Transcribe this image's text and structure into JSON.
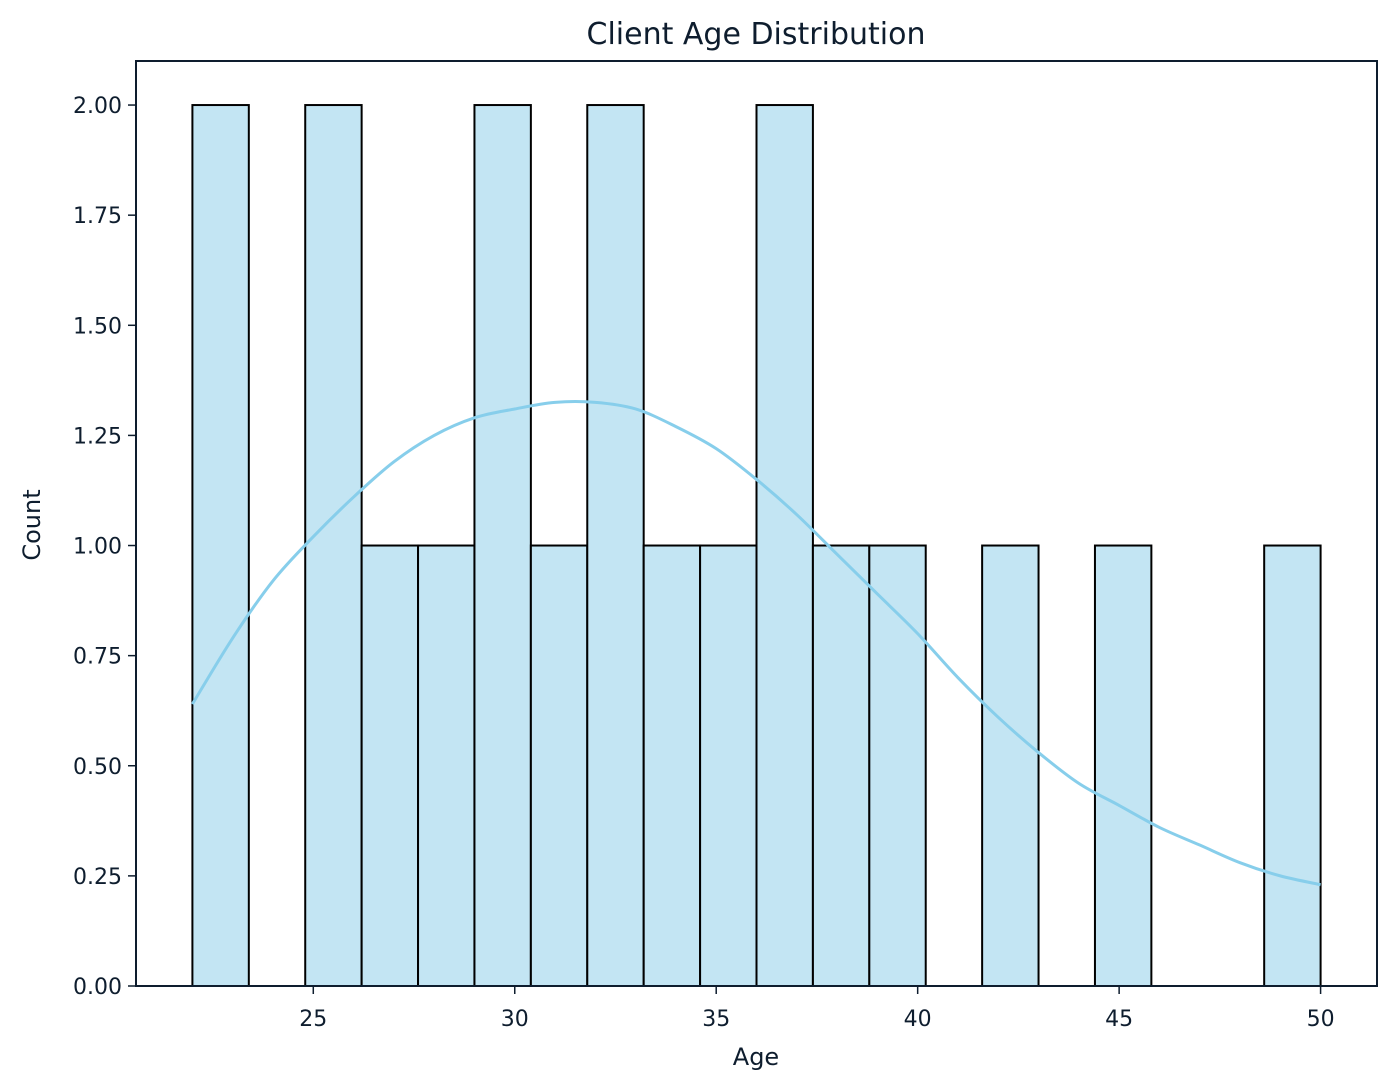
{
  "chart_data": {
    "type": "bar",
    "title": "Client Age Distribution",
    "xlabel": "Age",
    "ylabel": "Count",
    "xlim": [
      20.6,
      51.4
    ],
    "ylim": [
      0,
      2.1
    ],
    "x_ticks": [
      25,
      30,
      35,
      40,
      45,
      50
    ],
    "x_tick_labels": [
      "25",
      "30",
      "35",
      "40",
      "45",
      "50"
    ],
    "y_ticks": [
      0,
      0.25,
      0.5,
      0.75,
      1.0,
      1.25,
      1.5,
      1.75,
      2.0
    ],
    "y_tick_labels": [
      "0.00",
      "0.25",
      "0.50",
      "0.75",
      "1.00",
      "1.25",
      "1.50",
      "1.75",
      "2.00"
    ],
    "bin_start": 22,
    "bin_width": 1.4,
    "bins": [
      {
        "x0": 22.0,
        "x1": 23.4,
        "count": 2
      },
      {
        "x0": 23.4,
        "x1": 24.8,
        "count": 0
      },
      {
        "x0": 24.8,
        "x1": 26.2,
        "count": 2
      },
      {
        "x0": 26.2,
        "x1": 27.6,
        "count": 1
      },
      {
        "x0": 27.6,
        "x1": 29.0,
        "count": 1
      },
      {
        "x0": 29.0,
        "x1": 30.4,
        "count": 2
      },
      {
        "x0": 30.4,
        "x1": 31.8,
        "count": 1
      },
      {
        "x0": 31.8,
        "x1": 33.2,
        "count": 2
      },
      {
        "x0": 33.2,
        "x1": 34.6,
        "count": 1
      },
      {
        "x0": 34.6,
        "x1": 36.0,
        "count": 1
      },
      {
        "x0": 36.0,
        "x1": 37.4,
        "count": 2
      },
      {
        "x0": 37.4,
        "x1": 38.8,
        "count": 1
      },
      {
        "x0": 38.8,
        "x1": 40.2,
        "count": 1
      },
      {
        "x0": 40.2,
        "x1": 41.6,
        "count": 0
      },
      {
        "x0": 41.6,
        "x1": 43.0,
        "count": 1
      },
      {
        "x0": 43.0,
        "x1": 44.4,
        "count": 0
      },
      {
        "x0": 44.4,
        "x1": 45.8,
        "count": 1
      },
      {
        "x0": 45.8,
        "x1": 47.2,
        "count": 0
      },
      {
        "x0": 47.2,
        "x1": 48.6,
        "count": 0
      },
      {
        "x0": 48.6,
        "x1": 50.0,
        "count": 1
      }
    ],
    "kde": {
      "x": [
        22,
        23,
        24,
        25,
        26,
        27,
        28,
        29,
        30,
        31,
        32,
        33,
        34,
        35,
        36,
        37,
        38,
        39,
        40,
        41,
        42,
        43,
        44,
        45,
        46,
        47,
        48,
        49,
        50
      ],
      "y": [
        0.64,
        0.79,
        0.92,
        1.02,
        1.11,
        1.19,
        1.25,
        1.29,
        1.31,
        1.325,
        1.325,
        1.31,
        1.27,
        1.22,
        1.15,
        1.07,
        0.98,
        0.89,
        0.8,
        0.7,
        0.61,
        0.53,
        0.46,
        0.41,
        0.36,
        0.32,
        0.28,
        0.25,
        0.23
      ]
    },
    "colors": {
      "bar_fill": "#c3e5f3",
      "bar_edge": "#000000",
      "kde_line": "#87ceeb",
      "text": "#0e1d2e"
    },
    "grid": false,
    "legend": "none"
  }
}
